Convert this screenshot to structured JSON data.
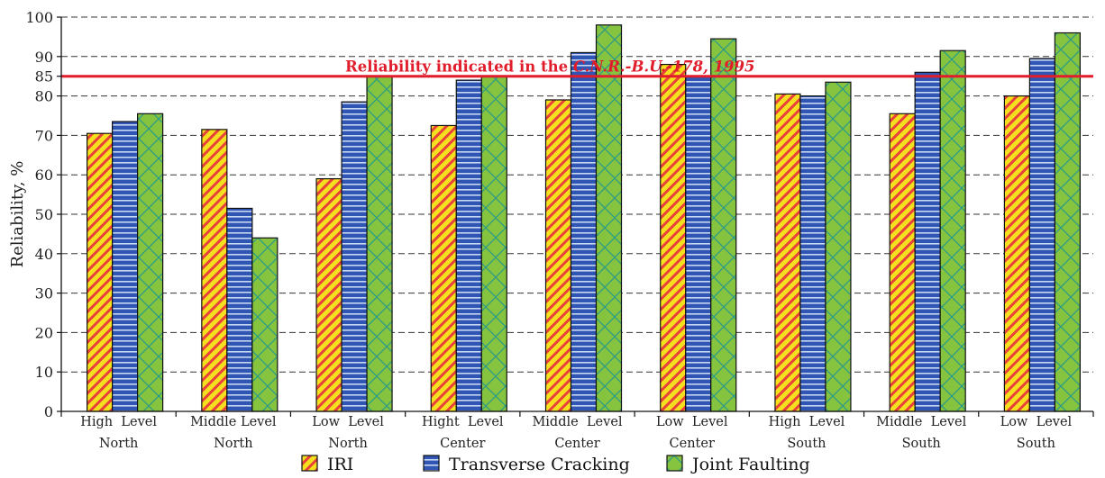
{
  "chart_data": {
    "type": "bar",
    "title": "",
    "xlabel": "",
    "ylabel": "Reliability, %",
    "ylim": [
      0,
      100
    ],
    "yticks": [
      0,
      10,
      20,
      30,
      40,
      50,
      60,
      70,
      80,
      85,
      90,
      100
    ],
    "grid": "horizontal-dashed",
    "legend_position": "bottom",
    "categories": [
      [
        "High  Level",
        "North"
      ],
      [
        "Middle Level",
        "North"
      ],
      [
        "Low  Level",
        "North"
      ],
      [
        "Hight  Level",
        "Center"
      ],
      [
        "Middle  Level",
        "Center"
      ],
      [
        "Low  Level",
        "Center"
      ],
      [
        "High  Level",
        "South"
      ],
      [
        "Middle  Level",
        "South"
      ],
      [
        "Low  Level",
        "South"
      ]
    ],
    "series": [
      {
        "name": "IRI",
        "color": "#f5e020",
        "pattern": "hatch-red",
        "values": [
          70.5,
          71.5,
          59,
          72.5,
          79,
          88,
          80.5,
          75.5,
          80
        ]
      },
      {
        "name": "Transverse Cracking",
        "color": "#2f56b5",
        "pattern": "stripes-white",
        "values": [
          73.5,
          51.5,
          78.5,
          84,
          91,
          85,
          80,
          86,
          89.5
        ]
      },
      {
        "name": "Joint Faulting",
        "color": "#86c440",
        "pattern": "crosshatch-teal",
        "values": [
          75.5,
          44,
          85,
          85,
          98,
          94.5,
          83.5,
          91.5,
          96
        ]
      }
    ],
    "reference_line": {
      "value": 85,
      "color": "#e11d2b",
      "label_prefix": "Reliability indicated in the ",
      "label_italic": "C.N.R.-B.U.-178, 1995"
    }
  }
}
